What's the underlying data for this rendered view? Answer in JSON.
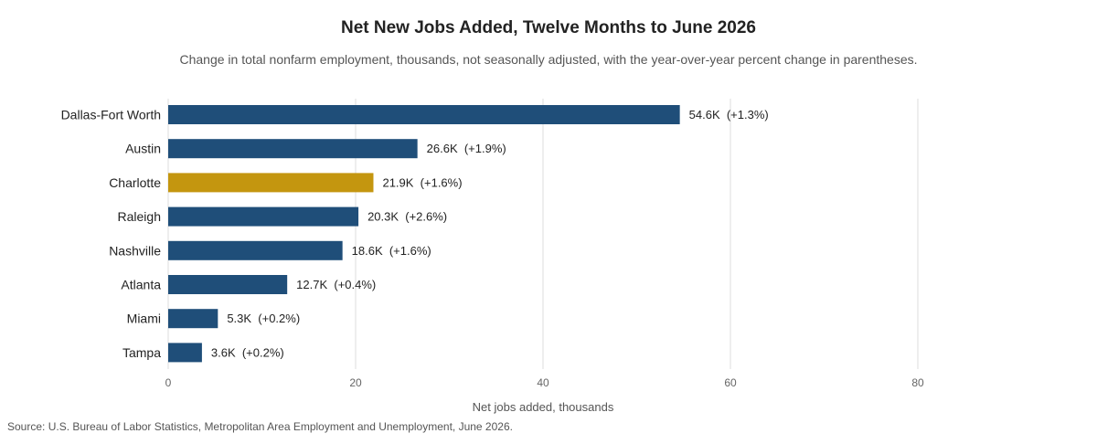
{
  "chart_data": {
    "type": "bar",
    "orientation": "horizontal",
    "title": "Net New Jobs Added, Twelve Months to June 2026",
    "subtitle": "Change in total nonfarm employment, thousands, not seasonally adjusted, with the year-over-year percent change in parentheses.",
    "xlabel": "Net jobs added, thousands",
    "ylabel": "",
    "xlim": [
      0,
      80
    ],
    "xticks": [
      0,
      20,
      40,
      60,
      80
    ],
    "grid": true,
    "legend": "none",
    "categories": [
      "Dallas-Fort Worth",
      "Austin",
      "Charlotte",
      "Raleigh",
      "Nashville",
      "Atlanta",
      "Miami",
      "Tampa"
    ],
    "values": [
      54.6,
      26.6,
      21.9,
      20.3,
      18.6,
      12.7,
      5.3,
      3.6
    ],
    "data_labels": [
      "54.6K  (+1.3%)",
      "26.6K  (+1.9%)",
      "21.9K  (+1.6%)",
      "20.3K  (+2.6%)",
      "18.6K  (+1.6%)",
      "12.7K  (+0.4%)",
      "5.3K  (+0.2%)",
      "3.6K  (+0.2%)"
    ],
    "highlight": "Charlotte",
    "colors": {
      "bar": "#1f4e79",
      "highlight": "#c4960f",
      "grid": "#dddddd"
    }
  },
  "source": "Source: U.S. Bureau of Labor Statistics, Metropolitan Area Employment and Unemployment, June 2026."
}
